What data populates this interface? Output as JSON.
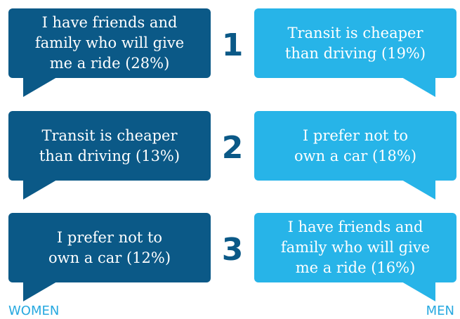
{
  "rows": [
    {
      "rank": "1",
      "women": [
        "I have friends and",
        "family who will give",
        "me a ride (28%)"
      ],
      "men": [
        "Transit is cheaper",
        "than driving (19%)"
      ]
    },
    {
      "rank": "2",
      "women": [
        "Transit is cheaper",
        "than driving (13%)"
      ],
      "men": [
        "I prefer not to",
        "own a car (18%)"
      ]
    },
    {
      "rank": "3",
      "women": [
        "I prefer not to",
        "own a car (12%)"
      ],
      "men": [
        "I have friends and",
        "family who will give",
        "me a ride (16%)"
      ]
    }
  ],
  "legend": {
    "women": "WOMEN",
    "men": "MEN"
  }
}
